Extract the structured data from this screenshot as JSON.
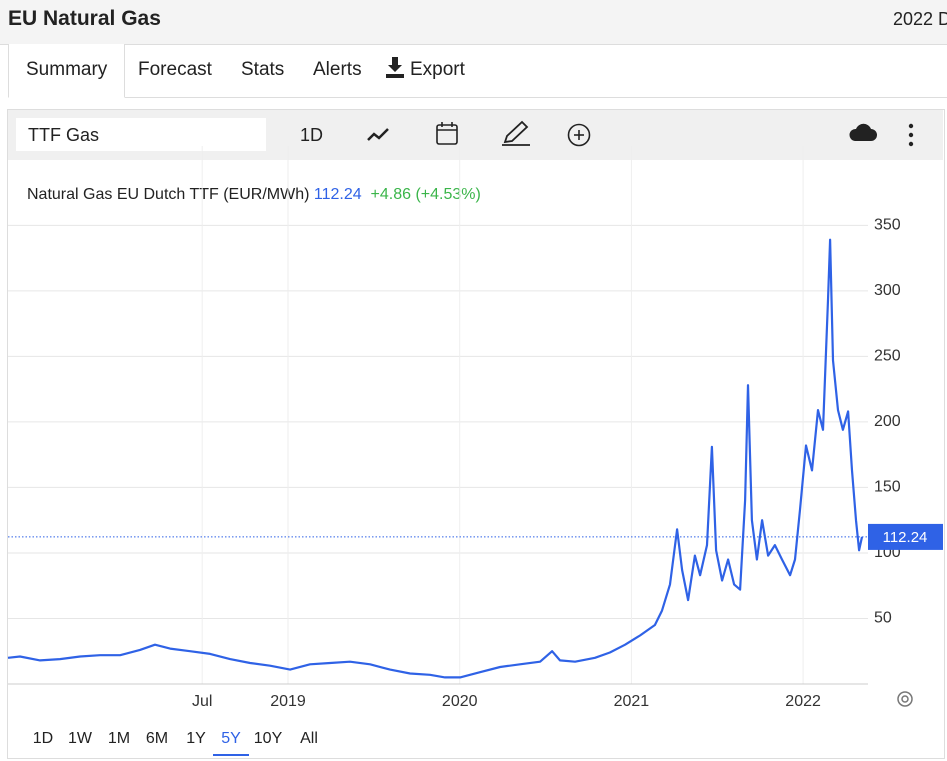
{
  "header": {
    "title": "EU Natural Gas",
    "date": "2022 D"
  },
  "tabs": [
    "Summary",
    "Forecast",
    "Stats",
    "Alerts",
    "Export"
  ],
  "toolbar": {
    "symbol": "TTF Gas",
    "interval": "1D"
  },
  "ranges": [
    "1D",
    "1W",
    "1M",
    "6M",
    "1Y",
    "5Y",
    "10Y",
    "All"
  ],
  "selected_range": "5Y",
  "chart_data": {
    "type": "line",
    "last_value": 112.24,
    "change": "+4.86",
    "change_pct": "(+4.53%)",
    "x": [
      2017.369,
      2017.439,
      2017.556,
      2017.672,
      2017.789,
      2017.905,
      2018.022,
      2018.138,
      2018.225,
      2018.313,
      2018.429,
      2018.546,
      2018.662,
      2018.779,
      2018.895,
      2019.012,
      2019.128,
      2019.245,
      2019.361,
      2019.478,
      2019.594,
      2019.711,
      2019.827,
      2019.914,
      2020.002,
      2020.118,
      2020.235,
      2020.351,
      2020.468,
      2020.538,
      2020.584,
      2020.672,
      2020.788,
      2020.875,
      2020.963,
      2021.05,
      2021.137,
      2021.178,
      2021.225,
      2021.266,
      2021.295,
      2021.33,
      2021.37,
      2021.4,
      2021.44,
      2021.469,
      2021.493,
      2021.528,
      2021.563,
      2021.598,
      2021.633,
      2021.662,
      2021.679,
      2021.702,
      2021.731,
      2021.761,
      2021.796,
      2021.836,
      2021.877,
      2021.924,
      2021.953,
      2021.982,
      2022.017,
      2022.052,
      2022.087,
      2022.116,
      2022.145,
      2022.157,
      2022.174,
      2022.203,
      2022.232,
      2022.262,
      2022.285,
      2022.308,
      2022.326,
      2022.343
    ],
    "series": [
      {
        "name": "Natural Gas EU Dutch TTF (EUR/MWh)",
        "color": "#2f62e6",
        "values": [
          20,
          21,
          18,
          19,
          21,
          22,
          22,
          26,
          30,
          27,
          25,
          23,
          19,
          16,
          14,
          11,
          15,
          16,
          17,
          15,
          11,
          8,
          7,
          5,
          5,
          9,
          13,
          15,
          17,
          25,
          18,
          17,
          20,
          24,
          30,
          37,
          45,
          56,
          76,
          118,
          87,
          64,
          98,
          83,
          106,
          181,
          102,
          79,
          95,
          76,
          72,
          140,
          228,
          125,
          95,
          125,
          98,
          106,
          95,
          83,
          95,
          133,
          182,
          163,
          209,
          194,
          293,
          339,
          247,
          209,
          194,
          208,
          163,
          125,
          102,
          112.24
        ]
      }
    ],
    "xlim": [
      2017.369,
      2022.378
    ],
    "xticks": [
      {
        "value": 2018.5,
        "label": "Jul"
      },
      2019,
      2020,
      2021,
      2022
    ],
    "ylim": [
      0,
      380
    ],
    "yticks": [
      50,
      100,
      150,
      200,
      250,
      300,
      350
    ],
    "grid": true
  }
}
